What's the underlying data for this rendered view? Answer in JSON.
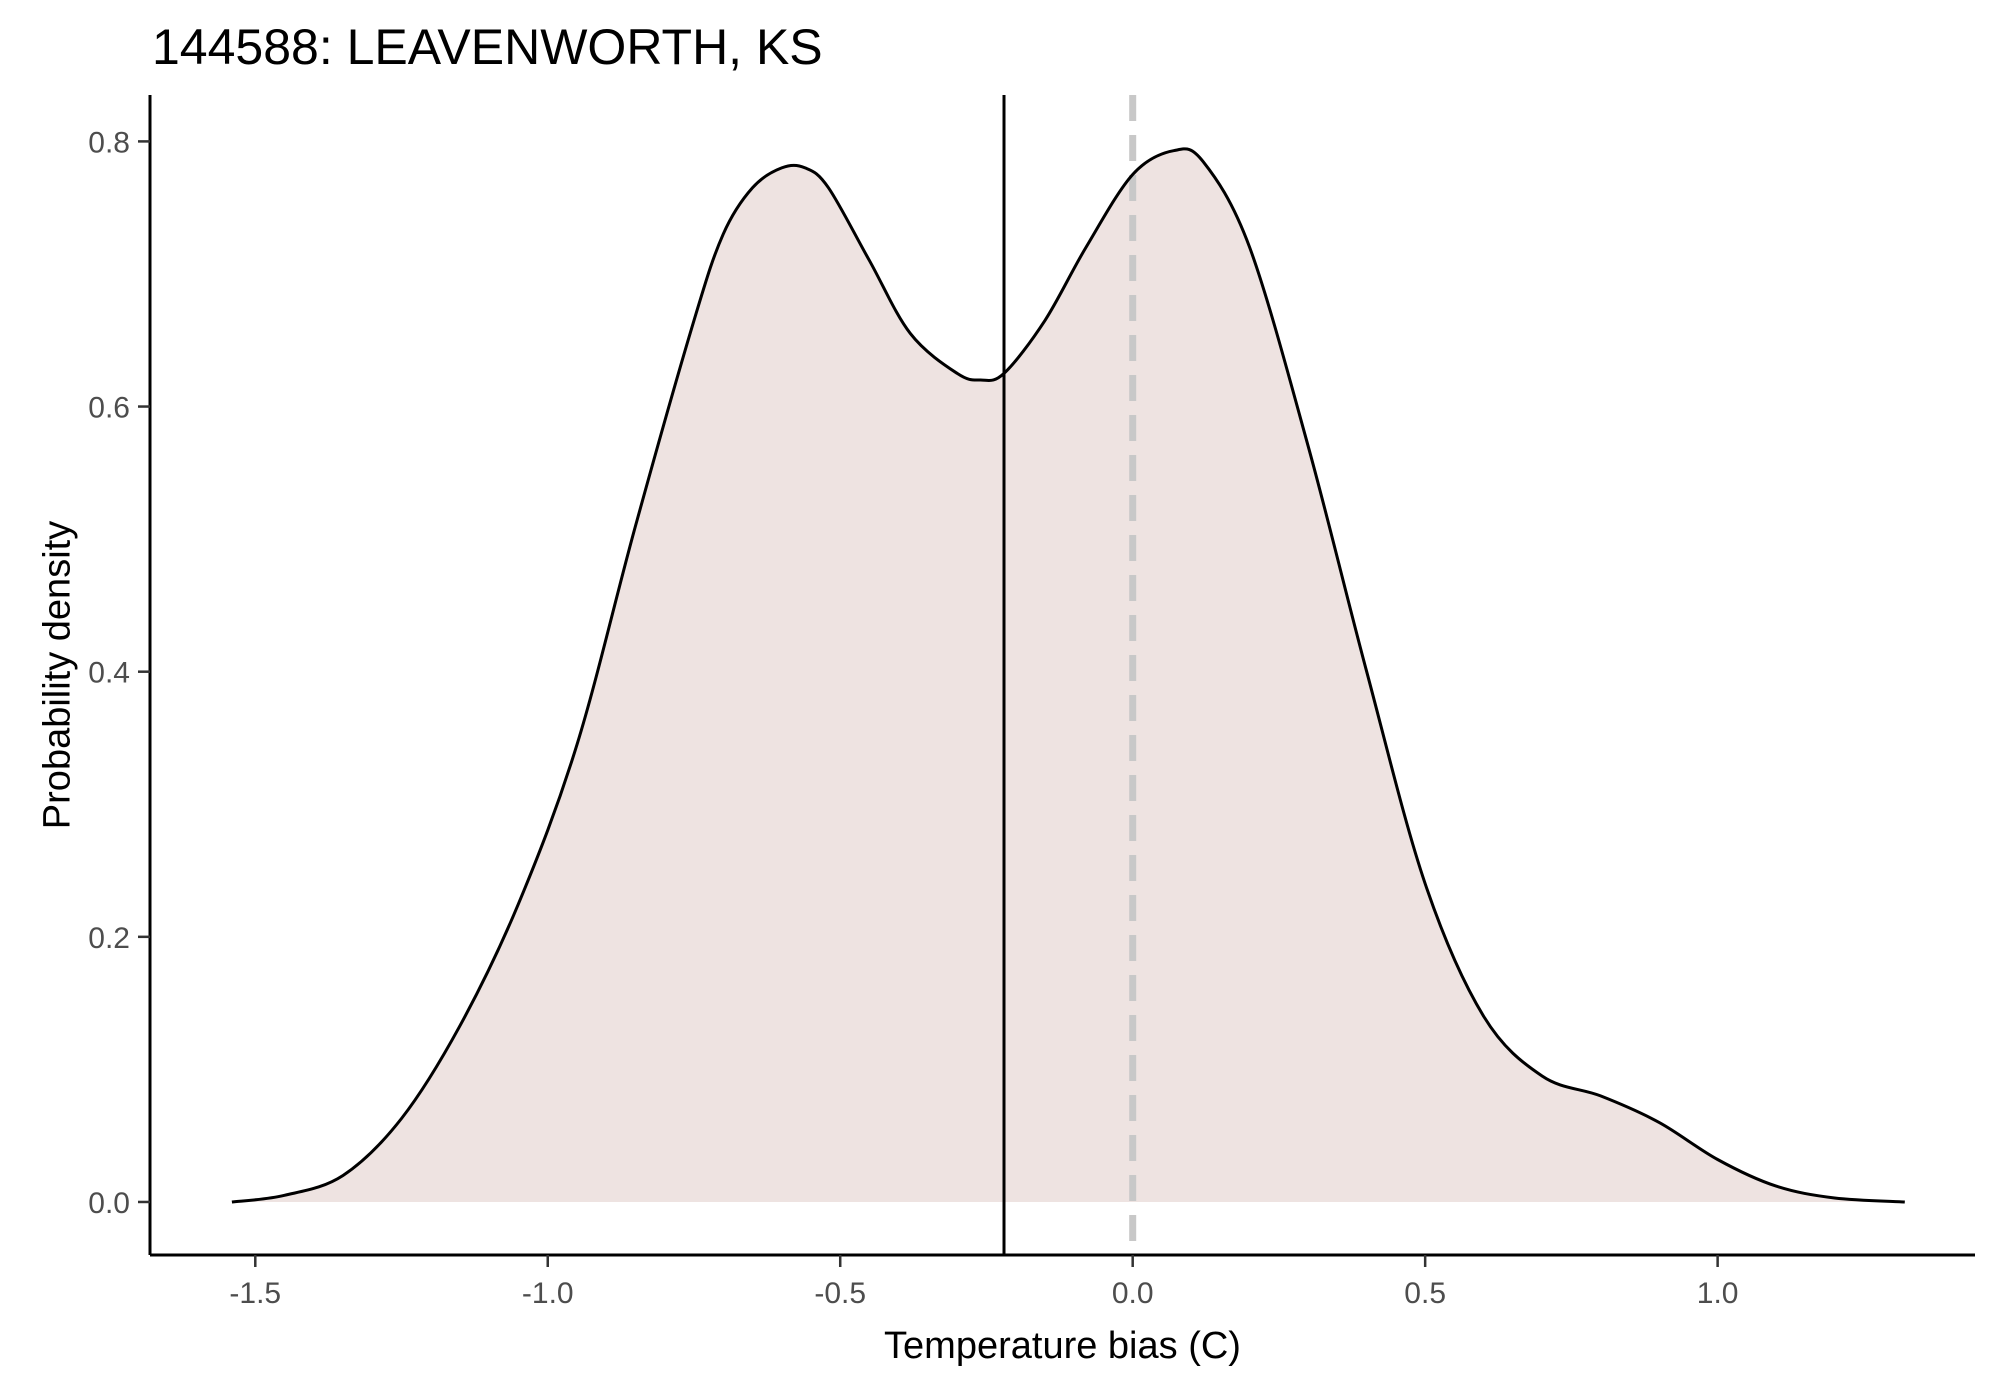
{
  "chart_data": {
    "type": "area",
    "title": "144588: LEAVENWORTH, KS",
    "xlabel": "Temperature bias (C)",
    "ylabel": "Probability density",
    "xlim": [
      -1.68,
      1.44
    ],
    "ylim": [
      -0.04,
      0.835
    ],
    "x_ticks": [
      -1.5,
      -1.0,
      -0.5,
      0.0,
      0.5,
      1.0
    ],
    "x_tick_labels": [
      "-1.5",
      "-1.0",
      "-0.5",
      "0.0",
      "0.5",
      "1.0"
    ],
    "y_ticks": [
      0.0,
      0.2,
      0.4,
      0.6,
      0.8
    ],
    "y_tick_labels": [
      "0.0",
      "0.2",
      "0.4",
      "0.6",
      "0.8"
    ],
    "grid": false,
    "legend": "none",
    "fill_color": "#eee3e1",
    "line_color": "#000000",
    "reference_lines": [
      {
        "x": -0.22,
        "style": "solid",
        "color": "#000000"
      },
      {
        "x": 0.0,
        "style": "dashed",
        "color": "#c8c8c8"
      }
    ],
    "series": [
      {
        "x": [
          -1.54,
          -1.45,
          -1.35,
          -1.25,
          -1.15,
          -1.05,
          -0.95,
          -0.85,
          -0.75,
          -0.7,
          -0.65,
          -0.6,
          -0.56,
          -0.52,
          -0.45,
          -0.38,
          -0.3,
          -0.26,
          -0.22,
          -0.15,
          -0.08,
          0.0,
          0.07,
          0.12,
          0.2,
          0.3,
          0.4,
          0.5,
          0.6,
          0.7,
          0.8,
          0.9,
          1.0,
          1.1,
          1.2,
          1.32
        ],
        "y": [
          0.0,
          0.005,
          0.02,
          0.063,
          0.133,
          0.225,
          0.345,
          0.51,
          0.665,
          0.73,
          0.765,
          0.78,
          0.78,
          0.765,
          0.71,
          0.655,
          0.625,
          0.62,
          0.625,
          0.665,
          0.72,
          0.775,
          0.793,
          0.785,
          0.72,
          0.57,
          0.4,
          0.24,
          0.14,
          0.095,
          0.08,
          0.06,
          0.032,
          0.012,
          0.003,
          0.0
        ]
      }
    ]
  }
}
